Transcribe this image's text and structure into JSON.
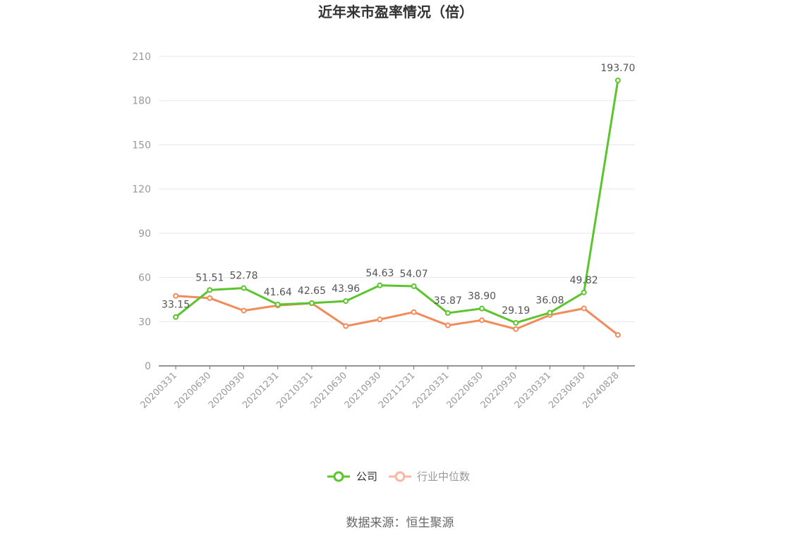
{
  "chart_data": {
    "type": "line",
    "title": "近年来市盈率情况（倍）",
    "source": "数据来源：恒生聚源",
    "categories": [
      "20200331",
      "20200630",
      "20200930",
      "20201231",
      "20210331",
      "20210630",
      "20210930",
      "20211231",
      "20220331",
      "20220630",
      "20220930",
      "20230331",
      "20230630",
      "20240828"
    ],
    "ylim": [
      0,
      210
    ],
    "yticks": [
      0,
      30,
      60,
      90,
      120,
      150,
      180,
      210
    ],
    "ytick_labels": [
      "0",
      "30",
      "60",
      "90",
      "120",
      "150",
      "180",
      "210"
    ],
    "grid": true,
    "legend_position": "bottom",
    "series": [
      {
        "name": "公司",
        "color": "#5cc52d",
        "values": [
          33.15,
          51.51,
          52.78,
          41.64,
          42.65,
          43.96,
          54.63,
          54.07,
          35.87,
          38.9,
          29.19,
          36.08,
          49.82,
          193.7
        ],
        "labels": [
          "33.15",
          "51.51",
          "52.78",
          "41.64",
          "42.65",
          "43.96",
          "54.63",
          "54.07",
          "35.87",
          "38.90",
          "29.19",
          "36.08",
          "49.82",
          "193.70"
        ]
      },
      {
        "name": "行业中位数",
        "color": "#f28b5a",
        "legend_color": "#f8b8a0",
        "values": [
          47.5,
          46.0,
          37.5,
          41.0,
          42.5,
          27.0,
          31.5,
          36.5,
          27.5,
          31.0,
          25.0,
          34.5,
          39.0,
          21.0
        ]
      }
    ]
  }
}
